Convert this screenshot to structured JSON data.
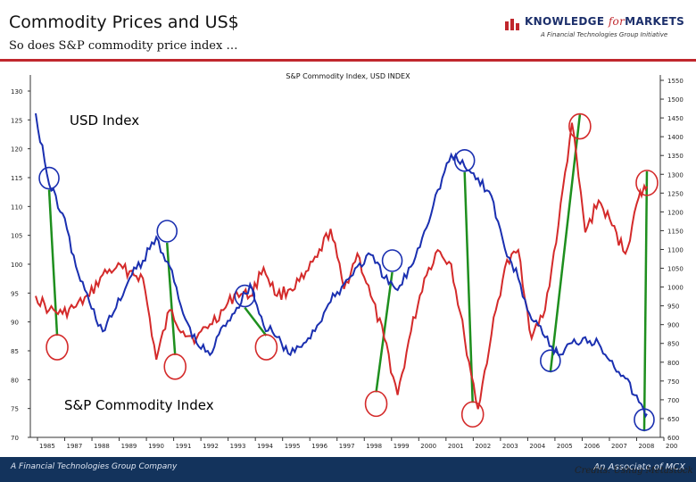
{
  "header": {
    "title": "Commodity Prices and US$",
    "subtitle": "So does S&P commodity price index …"
  },
  "logo": {
    "main": "KNOWLEDGE ",
    "for": "for",
    "markets": "MARKETS",
    "tagline": "A Financial Technologies Group Initiative"
  },
  "footer": {
    "left": "A Financial Technologies Group Company",
    "right": "An Associate of MCX"
  },
  "credit": "Credits: Ushug Metastock",
  "colors": {
    "usd": "#1a2fb0",
    "commodity": "#d42a2a",
    "connector": "#1e8f1e",
    "header_accent": "#c0272d",
    "footer_bg": "#13335c"
  },
  "chart_data": {
    "type": "line",
    "title": "S&P Commodity Index, USD INDEX",
    "x": [
      1985.5,
      1986,
      1986.5,
      1987,
      1987.5,
      1988,
      1988.5,
      1989,
      1989.5,
      1990,
      1990.5,
      1991,
      1991.5,
      1992,
      1992.5,
      1993,
      1993.5,
      1994,
      1994.5,
      1995,
      1995.5,
      1996,
      1996.5,
      1997,
      1997.5,
      1998,
      1998.5,
      1999,
      1999.5,
      2000,
      2000.5,
      2001,
      2001.5,
      2002,
      2002.5,
      2003,
      2003.5,
      2004,
      2004.5,
      2005,
      2005.5,
      2006,
      2006.5,
      2007,
      2007.5,
      2008,
      2008.3
    ],
    "xlim": [
      1985.3,
      2008.8
    ],
    "x_tick_labels": [
      "1985",
      "1987",
      "1988",
      "1989",
      "1990",
      "1991",
      "1992",
      "1993",
      "1994",
      "1995",
      "1996",
      "1997",
      "1998",
      "1999",
      "2000",
      "2001",
      "2002",
      "2003",
      "2004",
      "2005",
      "2006",
      "2007",
      "2008",
      "200"
    ],
    "left_axis": {
      "ylim": [
        70,
        130
      ],
      "tick_labels": [
        "130",
        "125",
        "120",
        "115",
        "110",
        "105",
        "100",
        "95",
        "90",
        "85",
        "80",
        "75",
        "70"
      ]
    },
    "right_axis": {
      "ylim": [
        600,
        1600
      ],
      "tick_labels": [
        "1550",
        "1500",
        "1450",
        "1400",
        "1350",
        "1300",
        "1250",
        "1200",
        "1150",
        "1100",
        "1050",
        "1000",
        "950",
        "900",
        "850",
        "800",
        "750",
        "700",
        "650",
        "600"
      ]
    },
    "series": [
      {
        "name": "USD Index",
        "axis": "left",
        "values": [
          125,
          113,
          108,
          99,
          93,
          88,
          92,
          97,
          100,
          104,
          99,
          91,
          86,
          84,
          89,
          92,
          96,
          89,
          87,
          84,
          86,
          89,
          93,
          96,
          99,
          101,
          97,
          95,
          99,
          105,
          112,
          118,
          116,
          114,
          111,
          102,
          97,
          90,
          87,
          84,
          86,
          87,
          86,
          83,
          80,
          76,
          74
        ]
      },
      {
        "name": "S&P Commodity Index",
        "axis": "right",
        "values": [
          1000,
          960,
          950,
          970,
          1000,
          1060,
          1080,
          1070,
          1050,
          820,
          960,
          900,
          880,
          920,
          960,
          1010,
          1000,
          1080,
          1000,
          1020,
          1050,
          1110,
          1190,
          1020,
          1120,
          1000,
          880,
          720,
          900,
          1050,
          1130,
          1090,
          880,
          680,
          890,
          1080,
          1130,
          880,
          960,
          1200,
          1490,
          1180,
          1270,
          1200,
          1120,
          1280,
          1310
        ]
      }
    ],
    "series_labels": {
      "usd": "USD Index",
      "commodity": "S&P Commodity Index"
    },
    "turning_points": [
      {
        "series": "USD Index",
        "x": 1986.0,
        "y": 114
      },
      {
        "series": "S&P Commodity Index",
        "x": 1986.3,
        "y": 855
      },
      {
        "series": "USD Index",
        "x": 1990.4,
        "y": 105
      },
      {
        "series": "S&P Commodity Index",
        "x": 1990.7,
        "y": 800
      },
      {
        "series": "USD Index",
        "x": 1993.3,
        "y": 94
      },
      {
        "series": "S&P Commodity Index",
        "x": 1994.1,
        "y": 855
      },
      {
        "series": "USD Index",
        "x": 1998.8,
        "y": 100
      },
      {
        "series": "S&P Commodity Index",
        "x": 1998.2,
        "y": 695
      },
      {
        "series": "USD Index",
        "x": 2001.5,
        "y": 117
      },
      {
        "series": "S&P Commodity Index",
        "x": 2001.8,
        "y": 665
      },
      {
        "series": "USD Index",
        "x": 2004.7,
        "y": 83
      },
      {
        "series": "S&P Commodity Index",
        "x": 2005.8,
        "y": 1480
      },
      {
        "series": "USD Index",
        "x": 2008.2,
        "y": 73
      },
      {
        "series": "S&P Commodity Index",
        "x": 2008.3,
        "y": 1320
      }
    ],
    "grid": false
  }
}
